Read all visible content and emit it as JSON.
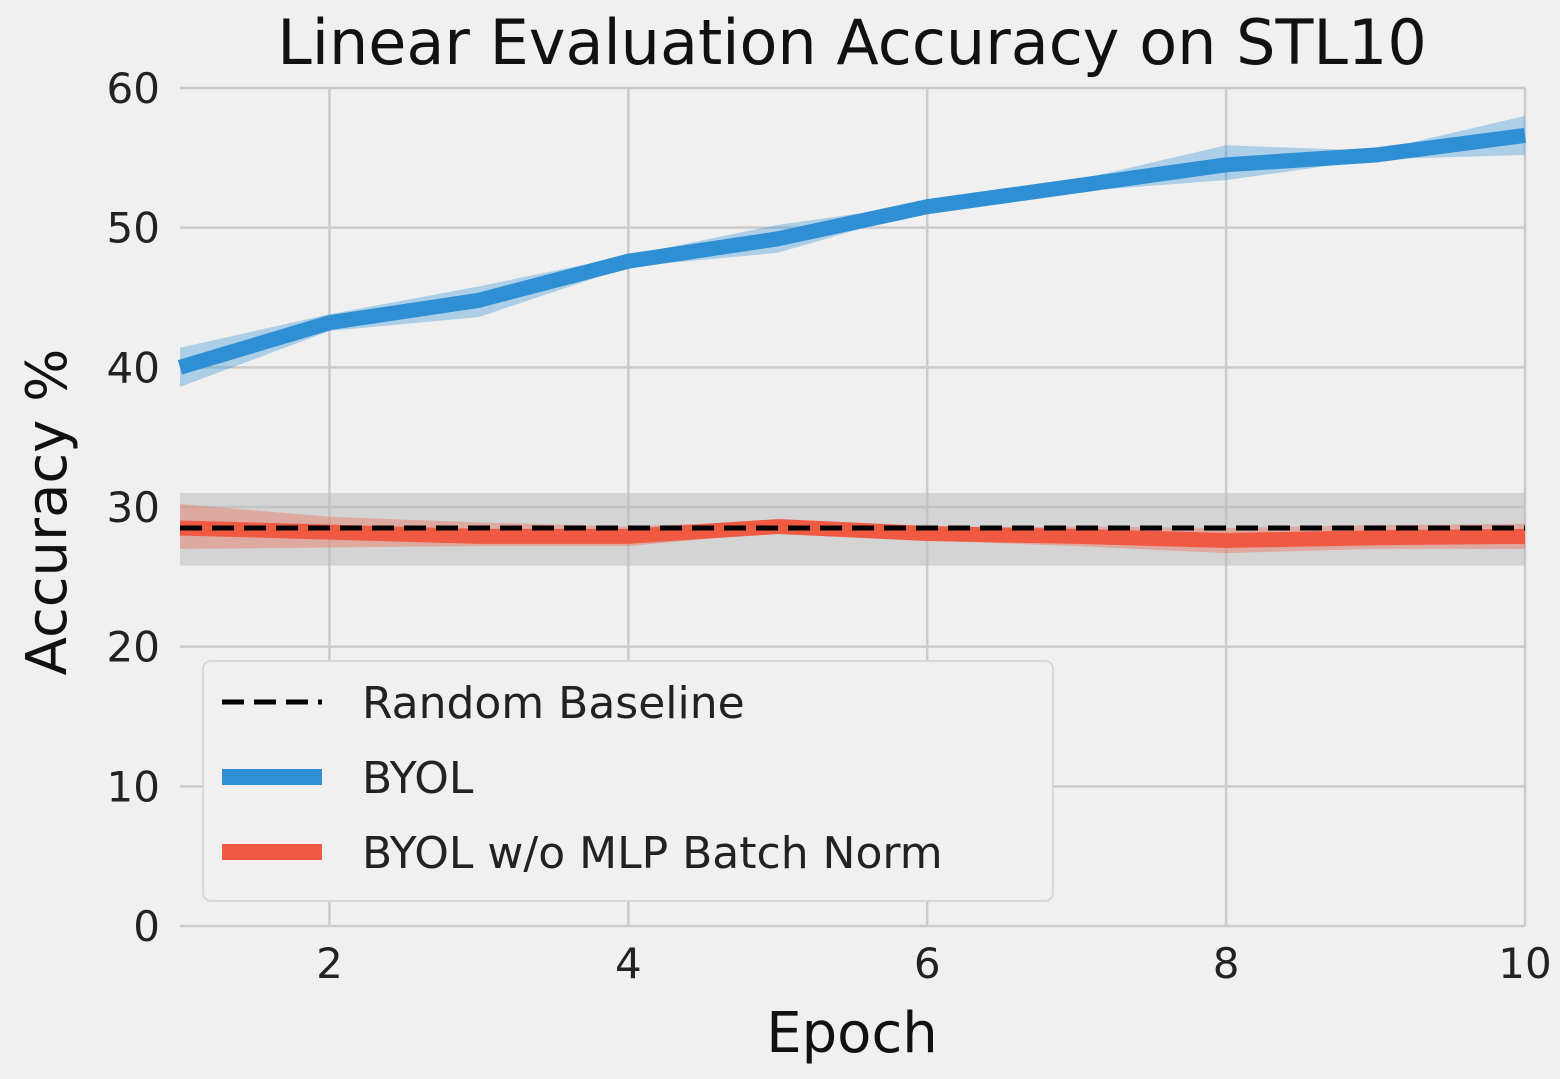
{
  "chart_data": {
    "type": "line",
    "title": "Linear Evaluation Accuracy on STL10",
    "xlabel": "Epoch",
    "ylabel": "Accuracy %",
    "xlim": [
      1,
      10
    ],
    "ylim": [
      0,
      60
    ],
    "x_ticks": [
      2,
      4,
      6,
      8,
      10
    ],
    "y_ticks": [
      0,
      10,
      20,
      30,
      40,
      50,
      60
    ],
    "grid": true,
    "legend_position": "lower-left",
    "x": [
      1,
      2,
      3,
      4,
      5,
      6,
      7,
      8,
      9,
      10
    ],
    "series": [
      {
        "name": "Random Baseline",
        "style": "dashed",
        "color": "#000000",
        "band_color": "#bdbdbd",
        "values": [
          28.5,
          28.5,
          28.5,
          28.5,
          28.5,
          28.5,
          28.5,
          28.5,
          28.5,
          28.5
        ],
        "lower": [
          25.8,
          25.8,
          25.8,
          25.8,
          25.8,
          25.8,
          25.8,
          25.8,
          25.8,
          25.8
        ],
        "upper": [
          31.0,
          31.0,
          31.0,
          31.0,
          31.0,
          31.0,
          31.0,
          31.0,
          31.0,
          31.0
        ]
      },
      {
        "name": "BYOL",
        "style": "solid",
        "color": "#2f8fd5",
        "band_color": "#2f8fd5",
        "values": [
          40.0,
          43.2,
          44.8,
          47.6,
          49.2,
          51.5,
          53.0,
          54.5,
          55.2,
          56.6
        ],
        "lower": [
          38.6,
          42.6,
          43.6,
          47.2,
          48.2,
          51.3,
          52.6,
          53.4,
          54.9,
          55.2
        ],
        "upper": [
          41.4,
          43.8,
          45.8,
          48.0,
          50.2,
          51.7,
          53.4,
          55.9,
          55.5,
          58.0
        ]
      },
      {
        "name": "BYOL w/o MLP Batch Norm",
        "style": "solid",
        "color": "#f05a43",
        "band_color": "#f05a43",
        "values": [
          28.5,
          28.2,
          27.9,
          27.9,
          28.6,
          28.1,
          27.9,
          27.6,
          27.8,
          27.9
        ],
        "lower": [
          27.0,
          27.1,
          27.2,
          27.2,
          28.2,
          27.6,
          27.2,
          26.7,
          27.0,
          27.0
        ],
        "upper": [
          30.2,
          29.3,
          28.9,
          28.6,
          29.0,
          28.5,
          28.6,
          28.5,
          28.7,
          28.8
        ]
      }
    ]
  }
}
